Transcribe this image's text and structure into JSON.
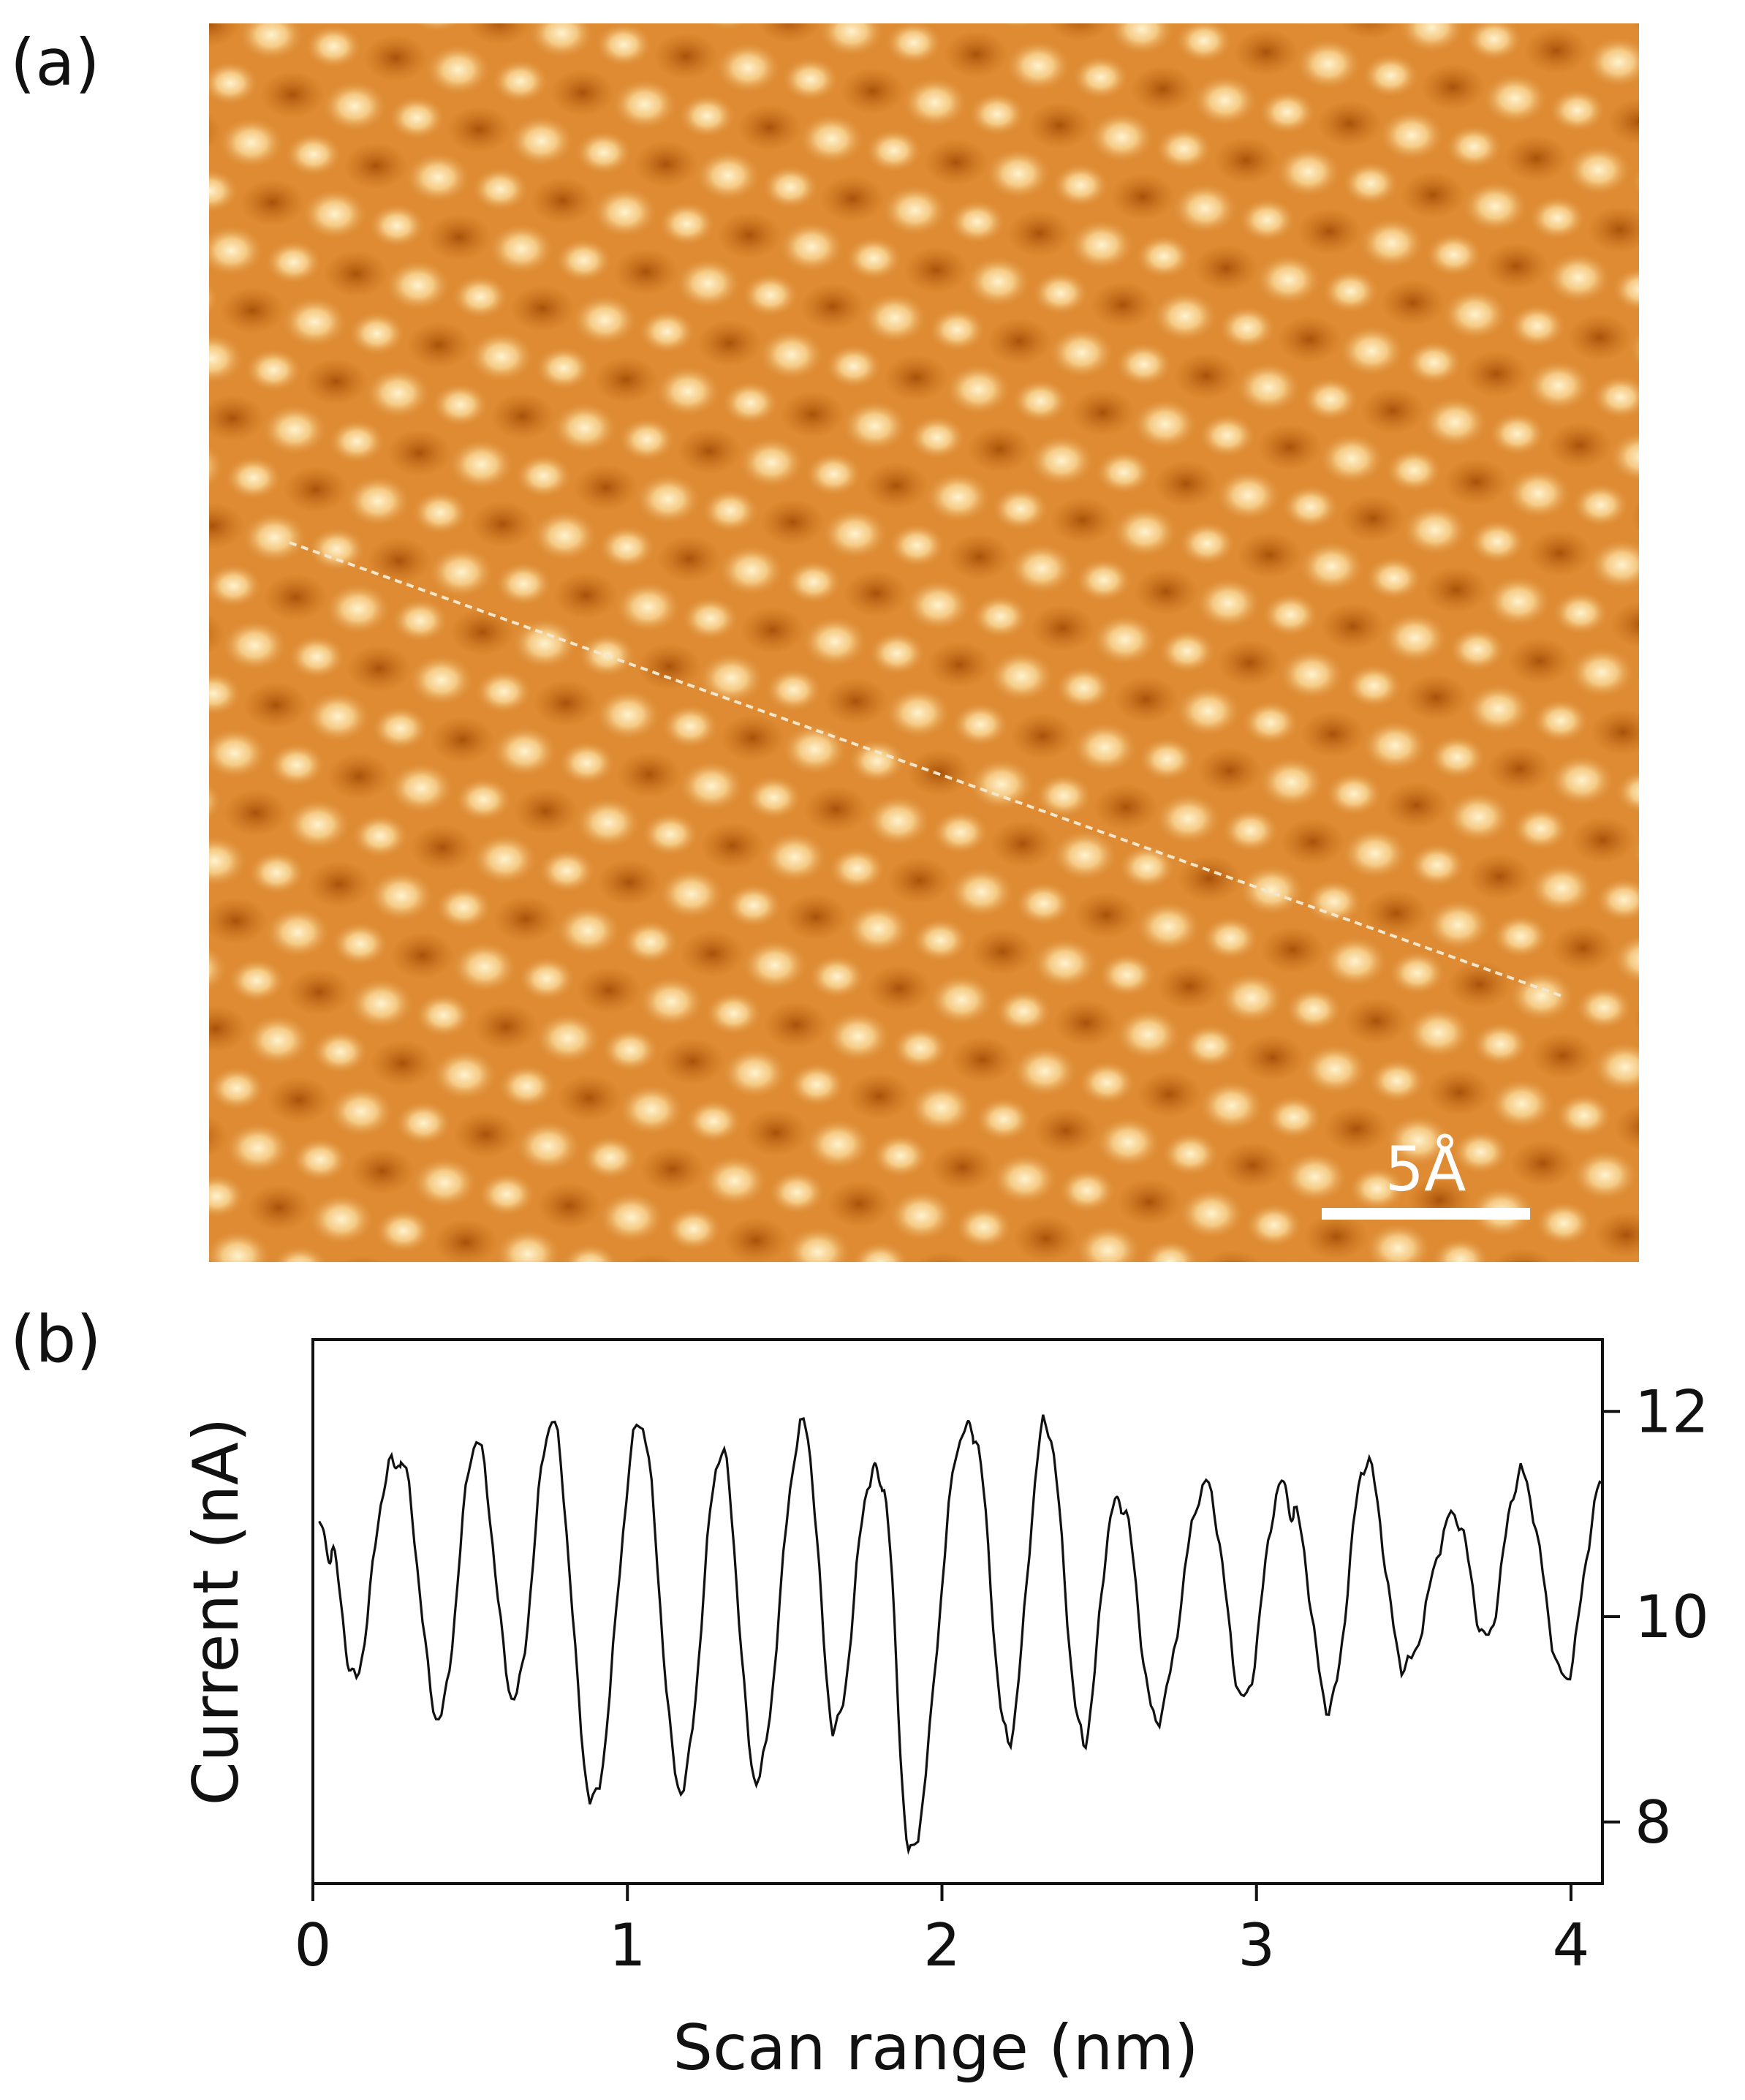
{
  "figure": {
    "panel_a_label": "(a)",
    "panel_b_label": "(b)"
  },
  "stm_image": {
    "scale_bar_label": "5Å",
    "colors": {
      "dark": "#b55a0a",
      "mid": "#de8b33",
      "light": "#fbe0a4"
    },
    "line_profile_color": "#f2e6cc"
  },
  "chart_data": {
    "type": "line",
    "title": "",
    "xlabel": "Scan range (nm)",
    "ylabel": "Current (nA)",
    "xlim": [
      0,
      4.1
    ],
    "ylim": [
      7.4,
      12.7
    ],
    "x_ticks": [
      0,
      1,
      2,
      3,
      4
    ],
    "x_tick_labels": [
      "0",
      "1",
      "2",
      "3",
      "4"
    ],
    "y_ticks": [
      8,
      10,
      12
    ],
    "y_tick_labels": [
      "8",
      "10",
      "12"
    ],
    "y_axis_side": "right",
    "grid": false,
    "series": [
      {
        "line_color": "#111111",
        "x": [
          0.02,
          0.06,
          0.13,
          0.25,
          0.28,
          0.4,
          0.52,
          0.64,
          0.76,
          0.89,
          1.04,
          1.17,
          1.3,
          1.41,
          1.56,
          1.66,
          1.78,
          1.81,
          1.9,
          2.07,
          2.1,
          2.21,
          2.33,
          2.45,
          2.55,
          2.57,
          2.68,
          2.84,
          2.96,
          3.08,
          3.12,
          3.23,
          3.35,
          3.47,
          3.63,
          3.73,
          3.84,
          3.98,
          4.1
        ],
        "y": [
          10.9,
          10.6,
          9.4,
          11.5,
          11.5,
          9.0,
          11.7,
          9.2,
          11.9,
          8.2,
          11.9,
          8.3,
          11.6,
          8.4,
          11.9,
          8.9,
          11.4,
          11.3,
          7.7,
          11.8,
          11.8,
          8.8,
          11.9,
          8.8,
          11.1,
          11.1,
          9.0,
          11.3,
          9.2,
          11.3,
          11.0,
          9.1,
          11.5,
          9.5,
          11.0,
          9.8,
          11.4,
          9.4,
          11.3
        ]
      }
    ]
  }
}
